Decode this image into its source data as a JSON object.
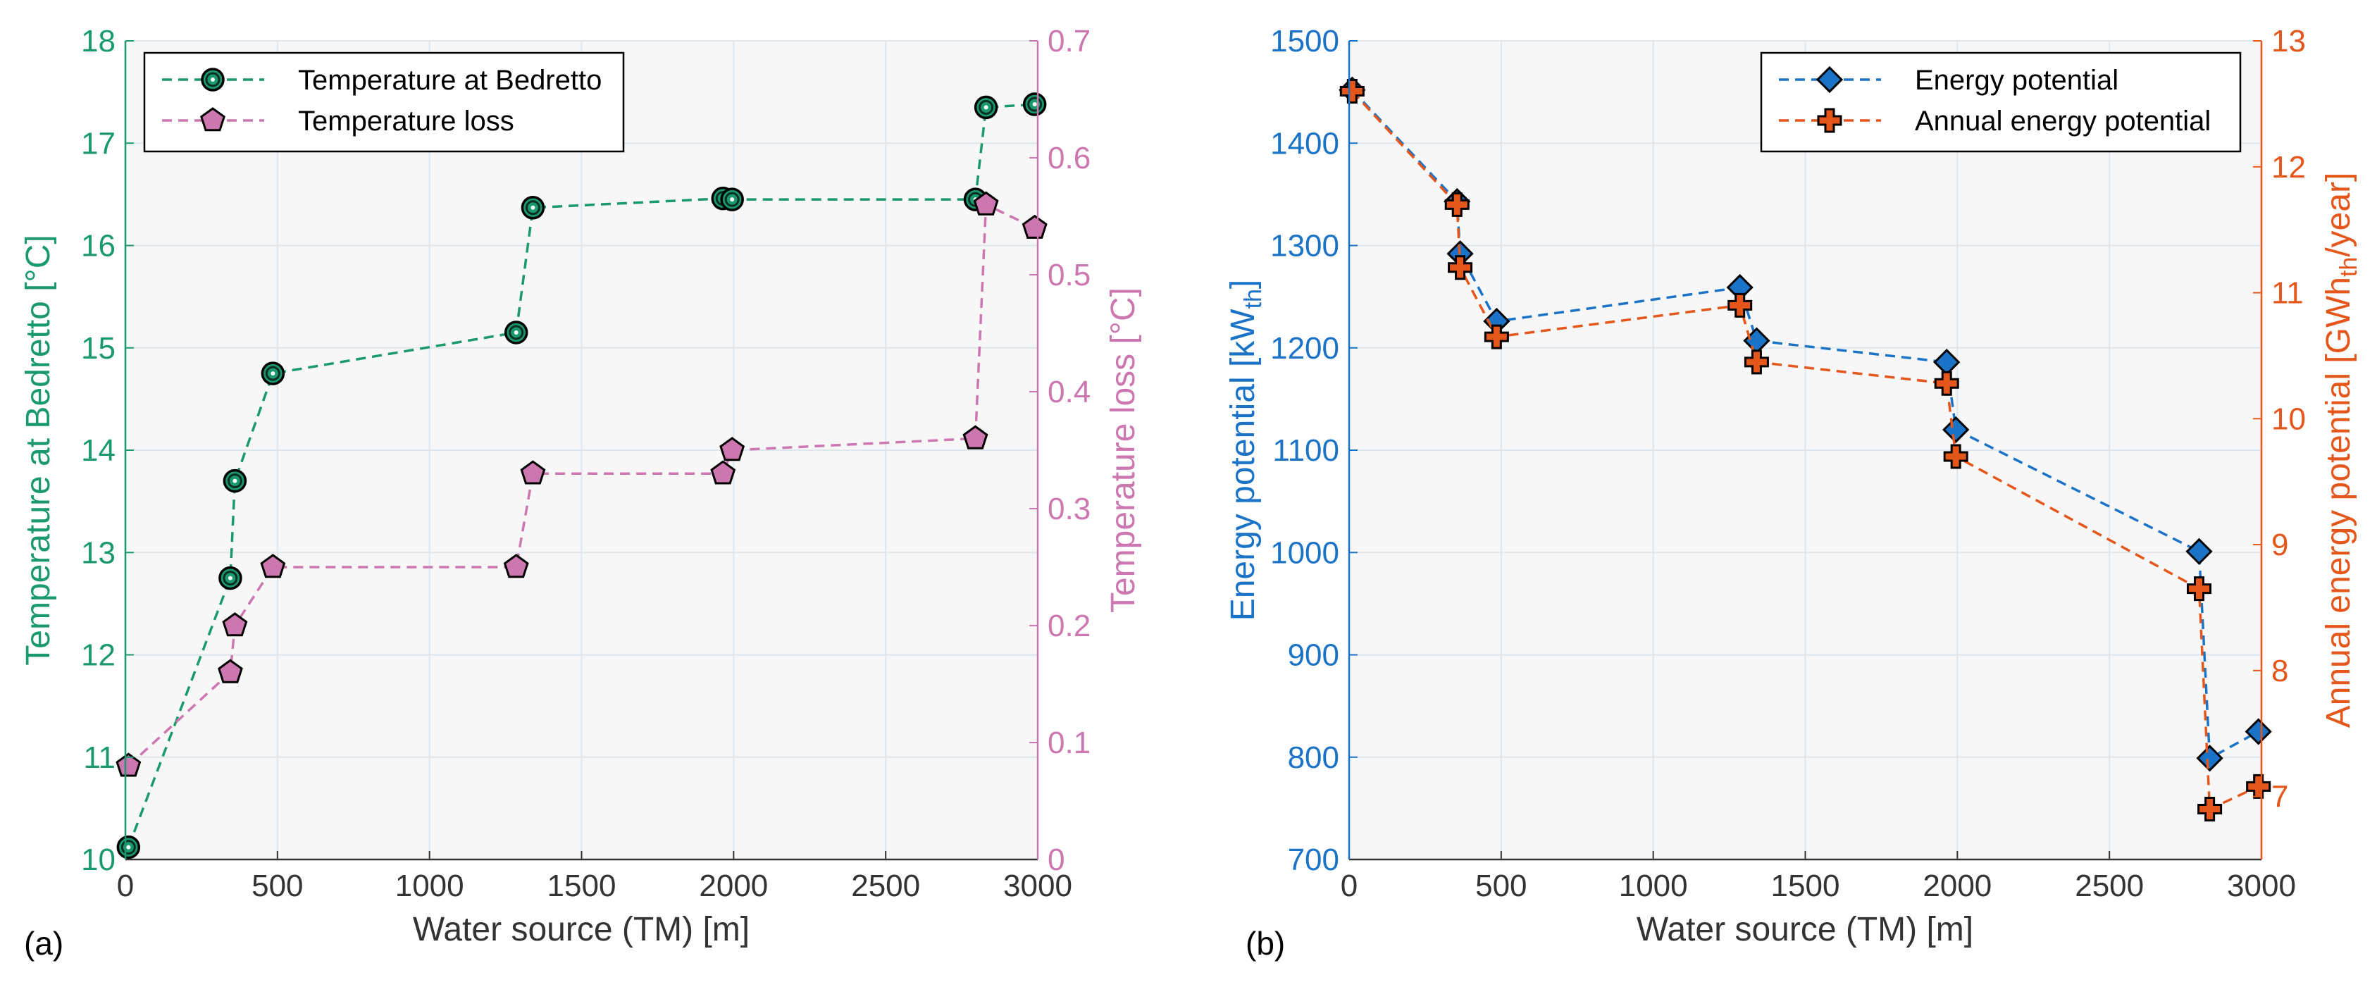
{
  "chart_data": [
    {
      "panel_label": "(a)",
      "type": "line",
      "xlabel": "Water source (TM) [m]",
      "xlim": [
        0,
        3000
      ],
      "xticks": [
        "0",
        "500",
        "1000",
        "1500",
        "2000",
        "2500",
        "3000"
      ],
      "ylabel_left": "Temperature at Bedretto [°C]",
      "ylim_left": [
        10,
        18
      ],
      "yticks_left": [
        "10",
        "11",
        "12",
        "13",
        "14",
        "15",
        "16",
        "17",
        "18"
      ],
      "ylabel_right": "Temperature loss [°C]",
      "ylim_right": [
        0,
        0.7
      ],
      "yticks_right": [
        "0",
        "0.1",
        "0.2",
        "0.3",
        "0.4",
        "0.5",
        "0.6",
        "0.7"
      ],
      "grid": true,
      "legend_position": "top-left",
      "series": [
        {
          "name": "Temperature at Bedretto",
          "axis": "left",
          "color": "#1a9a6c",
          "marker": "circle-dot",
          "points": [
            [
              10,
              10.12
            ],
            [
              345,
              12.75
            ],
            [
              360,
              13.7
            ],
            [
              485,
              14.75
            ],
            [
              1285,
              15.15
            ],
            [
              1340,
              16.37
            ],
            [
              1965,
              16.46
            ],
            [
              1995,
              16.45
            ],
            [
              2795,
              16.45
            ],
            [
              2830,
              17.35
            ],
            [
              2990,
              17.38
            ]
          ]
        },
        {
          "name": "Temperature loss",
          "axis": "right",
          "color": "#cc77b0",
          "marker": "pentagon",
          "points": [
            [
              10,
              0.08
            ],
            [
              345,
              0.16
            ],
            [
              360,
              0.2
            ],
            [
              485,
              0.25
            ],
            [
              1285,
              0.25
            ],
            [
              1340,
              0.33
            ],
            [
              1965,
              0.33
            ],
            [
              1995,
              0.35
            ],
            [
              2795,
              0.36
            ],
            [
              2830,
              0.56
            ],
            [
              2990,
              0.54
            ]
          ]
        }
      ]
    },
    {
      "panel_label": "(b)",
      "type": "line",
      "xlabel": "Water source (TM) [m]",
      "xlim": [
        0,
        3000
      ],
      "xticks": [
        "0",
        "500",
        "1000",
        "1500",
        "2000",
        "2500",
        "3000"
      ],
      "ylabel_left": "Energy potential [kW",
      "ylabel_left_sub": "th",
      "ylabel_left_end": "]",
      "ylim_left": [
        700,
        1500
      ],
      "yticks_left": [
        "700",
        "800",
        "900",
        "1000",
        "1100",
        "1200",
        "1300",
        "1400",
        "1500"
      ],
      "ylabel_right": "Annual energy potential [GWh",
      "ylabel_right_sub": "th",
      "ylabel_right_end": "/year]",
      "ylim_right": [
        6.5,
        13
      ],
      "yticks_right": [
        "7",
        "8",
        "9",
        "10",
        "11",
        "12",
        "13"
      ],
      "grid": true,
      "legend_position": "top-right",
      "series": [
        {
          "name": "Energy potential",
          "axis": "left",
          "color": "#1a73c6",
          "marker": "diamond",
          "points": [
            [
              10,
              1452
            ],
            [
              355,
              1343
            ],
            [
              365,
              1292
            ],
            [
              485,
              1226
            ],
            [
              1285,
              1259
            ],
            [
              1340,
              1207
            ],
            [
              1965,
              1186
            ],
            [
              1995,
              1120
            ],
            [
              2795,
              1001
            ],
            [
              2830,
              799
            ],
            [
              2990,
              825
            ]
          ]
        },
        {
          "name": "Annual energy potential",
          "axis": "right",
          "color": "#e5561b",
          "marker": "cross",
          "points": [
            [
              10,
              12.6
            ],
            [
              355,
              11.7
            ],
            [
              365,
              11.2
            ],
            [
              485,
              10.65
            ],
            [
              1285,
              10.9
            ],
            [
              1340,
              10.45
            ],
            [
              1965,
              10.28
            ],
            [
              1995,
              9.7
            ],
            [
              2795,
              8.65
            ],
            [
              2830,
              6.9
            ],
            [
              2990,
              7.08
            ]
          ]
        }
      ]
    }
  ]
}
